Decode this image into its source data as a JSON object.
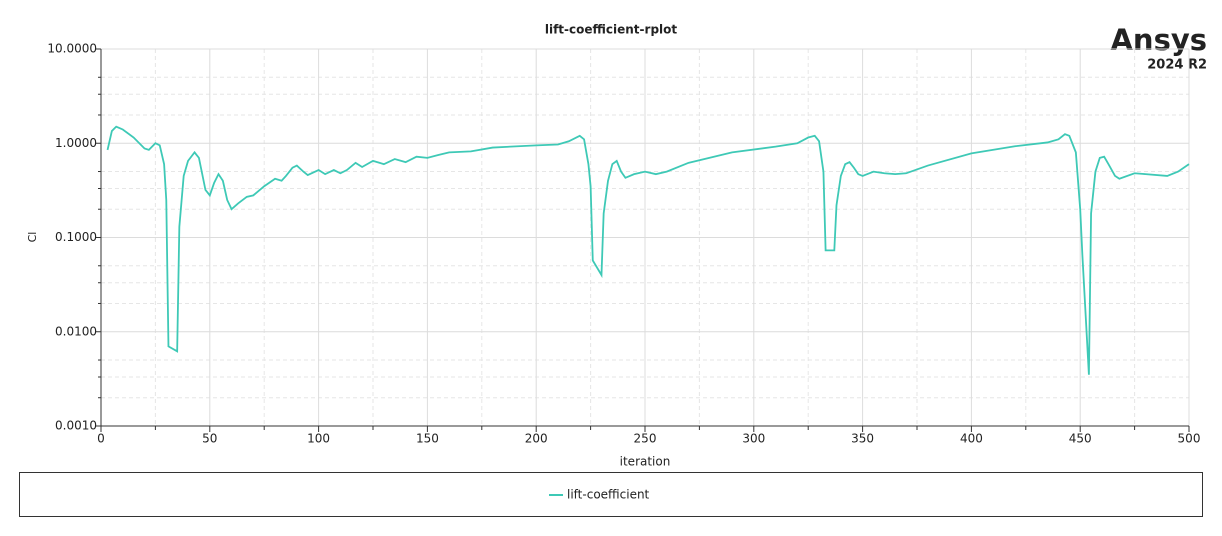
{
  "chart_data": {
    "type": "line",
    "title": "lift-coefficient-rplot",
    "x_label": "iteration",
    "y_label": "Cl",
    "log_y": true,
    "grid": true,
    "xlim": [
      0,
      500
    ],
    "xticks": [
      0,
      50,
      100,
      150,
      200,
      250,
      300,
      350,
      400,
      450,
      500
    ],
    "ylim": [
      0.001,
      10
    ],
    "yticks": [
      {
        "value": 0.001,
        "label": "0.0010"
      },
      {
        "value": 0.01,
        "label": "0.0100"
      },
      {
        "value": 0.1,
        "label": "0.1000"
      },
      {
        "value": 1,
        "label": "1.0000"
      },
      {
        "value": 10,
        "label": "10.0000"
      }
    ],
    "x": [
      3,
      5,
      7,
      10,
      15,
      20,
      22,
      25,
      27,
      29,
      30,
      31,
      35,
      36,
      38,
      40,
      43,
      45,
      48,
      50,
      52,
      54,
      56,
      58,
      60,
      63,
      67,
      70,
      75,
      80,
      83,
      85,
      88,
      90,
      93,
      95,
      100,
      103,
      107,
      110,
      113,
      117,
      120,
      125,
      130,
      135,
      140,
      145,
      150,
      155,
      160,
      170,
      180,
      200,
      210,
      215,
      220,
      222,
      224,
      225,
      226,
      230,
      231,
      233,
      235,
      237,
      239,
      241,
      245,
      250,
      255,
      260,
      270,
      290,
      310,
      320,
      325,
      328,
      330,
      332,
      333,
      337,
      338,
      340,
      342,
      344,
      346,
      348,
      350,
      355,
      360,
      365,
      370,
      380,
      400,
      420,
      435,
      440,
      443,
      445,
      448,
      450,
      451,
      454,
      455,
      457,
      459,
      461,
      463,
      466,
      468,
      475,
      480,
      490,
      495,
      500
    ],
    "series": [
      {
        "name": "lift-coefficient",
        "color": "#3ec9b6",
        "values": [
          0.85,
          1.35,
          1.5,
          1.4,
          1.15,
          0.88,
          0.85,
          1.0,
          0.95,
          0.6,
          0.25,
          0.007,
          0.0062,
          0.13,
          0.45,
          0.65,
          0.8,
          0.7,
          0.32,
          0.28,
          0.38,
          0.47,
          0.4,
          0.25,
          0.2,
          0.23,
          0.27,
          0.28,
          0.35,
          0.42,
          0.4,
          0.45,
          0.55,
          0.58,
          0.5,
          0.46,
          0.52,
          0.47,
          0.52,
          0.48,
          0.52,
          0.62,
          0.56,
          0.65,
          0.6,
          0.68,
          0.63,
          0.72,
          0.7,
          0.75,
          0.8,
          0.82,
          0.9,
          0.95,
          0.97,
          1.05,
          1.2,
          1.1,
          0.6,
          0.35,
          0.057,
          0.04,
          0.18,
          0.4,
          0.6,
          0.65,
          0.5,
          0.43,
          0.47,
          0.5,
          0.47,
          0.5,
          0.62,
          0.8,
          0.92,
          1.0,
          1.15,
          1.2,
          1.05,
          0.5,
          0.073,
          0.073,
          0.22,
          0.45,
          0.6,
          0.63,
          0.55,
          0.47,
          0.45,
          0.5,
          0.48,
          0.47,
          0.48,
          0.58,
          0.78,
          0.93,
          1.02,
          1.1,
          1.25,
          1.2,
          0.8,
          0.2,
          0.065,
          0.0035,
          0.18,
          0.5,
          0.7,
          0.72,
          0.6,
          0.45,
          0.42,
          0.48,
          0.47,
          0.45,
          0.5,
          0.6
        ]
      }
    ]
  },
  "branding": {
    "name": "Ansys",
    "version": "2024 R2"
  }
}
